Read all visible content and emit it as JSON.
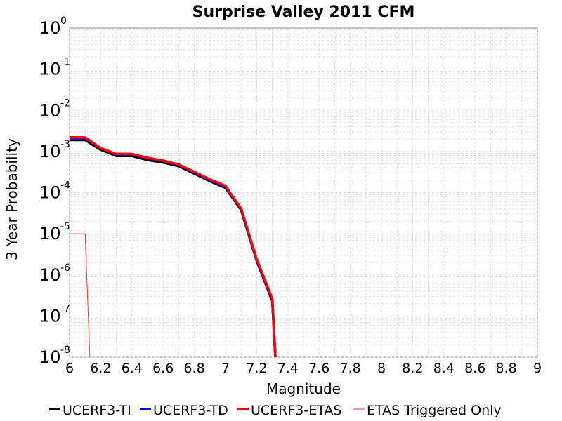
{
  "chart_data": {
    "type": "line",
    "title": "Surprise Valley 2011 CFM",
    "xlabel": "Magnitude",
    "ylabel": "3 Year Probability",
    "xlim": [
      6,
      9
    ],
    "ylim": [
      1e-08,
      1
    ],
    "y_scale": "log",
    "grid": true,
    "legend_position": "bottom",
    "x_ticks": [
      "6",
      "6.2",
      "6.4",
      "6.6",
      "6.8",
      "7",
      "7.2",
      "7.4",
      "7.6",
      "7.8",
      "8",
      "8.2",
      "8.4",
      "8.6",
      "8.8",
      "9"
    ],
    "y_ticks": [
      {
        "base": "10",
        "exp": "0"
      },
      {
        "base": "10",
        "exp": "-1"
      },
      {
        "base": "10",
        "exp": "-2"
      },
      {
        "base": "10",
        "exp": "-3"
      },
      {
        "base": "10",
        "exp": "-4"
      },
      {
        "base": "10",
        "exp": "-5"
      },
      {
        "base": "10",
        "exp": "-6"
      },
      {
        "base": "10",
        "exp": "-7"
      },
      {
        "base": "10",
        "exp": "-8"
      }
    ],
    "series": [
      {
        "name": "UCERF3-TI",
        "color": "#000000",
        "x": [
          6.0,
          6.1,
          6.2,
          6.3,
          6.4,
          6.5,
          6.6,
          6.7,
          6.8,
          6.9,
          7.0,
          7.1,
          7.2,
          7.3,
          7.32
        ],
        "y": [
          0.0019,
          0.0019,
          0.0011,
          0.00078,
          0.00078,
          0.00062,
          0.00054,
          0.00044,
          0.00029,
          0.00019,
          0.00013,
          3.8e-05,
          2.2e-06,
          2.3e-07,
          1e-08
        ]
      },
      {
        "name": "UCERF3-TD",
        "color": "#0000ff",
        "x": [
          6.0,
          6.1,
          6.2,
          6.3,
          6.4,
          6.5,
          6.6,
          6.7,
          6.8,
          6.9,
          7.0,
          7.1,
          7.2,
          7.3,
          7.32
        ],
        "y": [
          0.0021,
          0.0021,
          0.0012,
          0.00085,
          0.00085,
          0.00068,
          0.00059,
          0.00047,
          0.00031,
          0.0002,
          0.00014,
          4e-05,
          2.3e-06,
          2.5e-07,
          1e-08
        ]
      },
      {
        "name": "UCERF3-ETAS",
        "color": "#ff0000",
        "x": [
          6.0,
          6.1,
          6.2,
          6.3,
          6.4,
          6.5,
          6.6,
          6.7,
          6.8,
          6.9,
          7.0,
          7.1,
          7.2,
          7.3,
          7.32
        ],
        "y": [
          0.0022,
          0.0022,
          0.0012,
          0.00087,
          0.00087,
          0.0007,
          0.0006,
          0.00048,
          0.00032,
          0.00021,
          0.000145,
          4.1e-05,
          2.4e-06,
          2.6e-07,
          1e-08
        ]
      },
      {
        "name": "ETAS Triggered Only",
        "color": "#ff3333",
        "thin": true,
        "x": [
          6.0,
          6.1,
          6.13
        ],
        "y": [
          1e-05,
          1e-05,
          1e-08
        ]
      }
    ]
  }
}
